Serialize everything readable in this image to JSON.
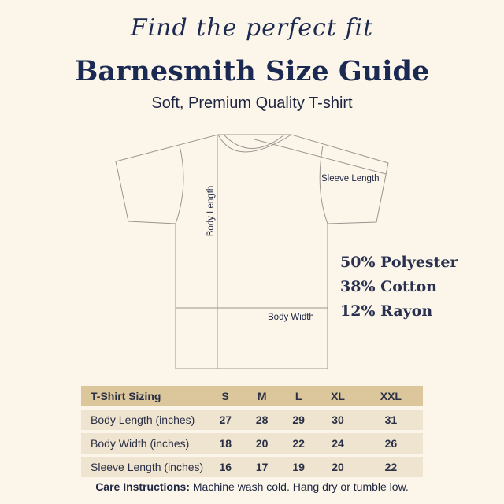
{
  "header": {
    "script_tagline": "Find the perfect fit",
    "title": "Barnesmith Size Guide",
    "subtitle": "Soft, Premium Quality T-shirt"
  },
  "diagram": {
    "body_length": "Body Length",
    "sleeve_length": "Sleeve Length",
    "body_width": "Body Width"
  },
  "fabric": [
    "50% Polyester",
    "38% Cotton",
    "12% Rayon"
  ],
  "table": {
    "header": [
      "T-Shirt Sizing",
      "S",
      "M",
      "L",
      "XL",
      "XXL"
    ],
    "rows": [
      [
        "Body Length (inches)",
        "27",
        "28",
        "29",
        "30",
        "31"
      ],
      [
        "Body Width (inches)",
        "18",
        "20",
        "22",
        "24",
        "26"
      ],
      [
        "Sleeve Length (inches)",
        "16",
        "17",
        "19",
        "20",
        "22"
      ]
    ]
  },
  "care": {
    "label": "Care Instructions:",
    "text": " Machine wash cold. Hang dry or tumble low."
  },
  "colors": {
    "background": "#fcf6ea",
    "title": "#1a2a52",
    "table_header": "#dcc79c",
    "table_row": "#efe4cf"
  }
}
